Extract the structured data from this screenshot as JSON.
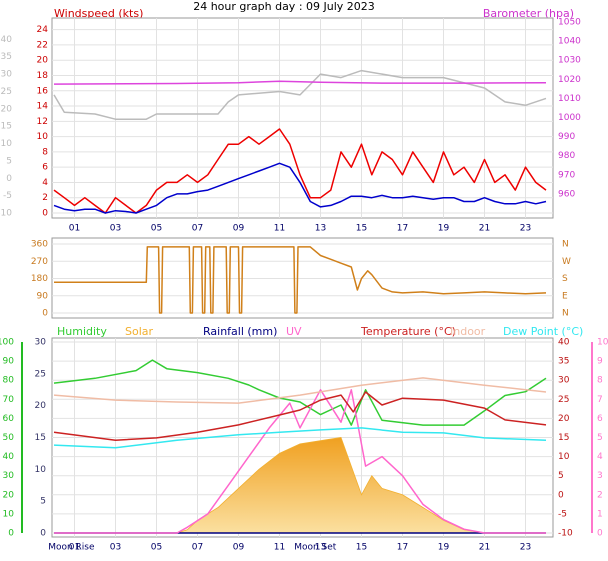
{
  "title": "24 hour graph day : 09 July 2023",
  "chart_data": [
    {
      "type": "line",
      "y_label": "Windspeed (kts)",
      "y2_label": "Barometer (hpa)",
      "axis_colors": {
        "y": "#cc0000",
        "y2": "#cc33cc",
        "y3": "#bbbbbb"
      },
      "grid": true,
      "xlim": [
        0,
        24
      ],
      "xticks": [
        {
          "value": 1,
          "label": "01"
        },
        {
          "value": 3,
          "label": "03"
        },
        {
          "value": 5,
          "label": "05"
        },
        {
          "value": 7,
          "label": "07"
        },
        {
          "value": 9,
          "label": "09"
        },
        {
          "value": 11,
          "label": "11"
        },
        13,
        15,
        17,
        19,
        21,
        23
      ],
      "ylim": [
        0,
        25
      ],
      "yticks": [
        0,
        2,
        4,
        6,
        8,
        10,
        12,
        14,
        16,
        18,
        20,
        22,
        24
      ],
      "y2lim": [
        950,
        1050
      ],
      "y2ticks": [
        960,
        970,
        980,
        990,
        1000,
        1010,
        1020,
        1030,
        1040,
        1050
      ],
      "y3lim": [
        -10,
        45
      ],
      "y3ticks": [
        -10,
        -5,
        0,
        5,
        10,
        15,
        20,
        25,
        30,
        35,
        40
      ],
      "x": [
        0,
        0.5,
        1,
        1.5,
        2,
        2.5,
        3,
        3.5,
        4,
        4.5,
        5,
        5.5,
        6,
        6.5,
        7,
        7.5,
        8,
        8.5,
        9,
        9.5,
        10,
        10.5,
        11,
        11.5,
        12,
        12.5,
        13,
        13.5,
        14,
        14.5,
        15,
        15.5,
        16,
        16.5,
        17,
        17.5,
        18,
        18.5,
        19,
        19.5,
        20,
        20.5,
        21,
        21.5,
        22,
        22.5,
        23,
        23.5,
        24
      ],
      "series": [
        {
          "color": "#bbbbbb",
          "axis": "y3",
          "x": [
            0,
            0.5,
            2,
            3,
            4.5,
            5,
            8,
            8.5,
            9,
            11,
            12,
            13,
            14,
            15,
            17,
            19,
            21,
            22,
            23,
            24
          ],
          "values": [
            24,
            19,
            18.5,
            17,
            17,
            18.5,
            18.5,
            22,
            24,
            25,
            24,
            30,
            29,
            31,
            29,
            29,
            26,
            22,
            21,
            23
          ]
        },
        {
          "color": "#dd44dd",
          "axis": "y2",
          "x": [
            0,
            6,
            9,
            11,
            13,
            16,
            20,
            24
          ],
          "values": [
            1017.5,
            1017.8,
            1018.2,
            1019,
            1018.5,
            1018,
            1018,
            1018.2
          ]
        },
        {
          "color": "#ee0000",
          "axis": "y",
          "values": [
            3,
            2,
            1,
            2,
            1,
            0,
            2,
            1,
            0,
            1,
            3,
            4,
            4,
            5,
            4,
            5,
            7,
            9,
            9,
            10,
            9,
            10,
            11,
            9,
            5,
            2,
            2,
            3,
            8,
            6,
            9,
            5,
            8,
            7,
            5,
            8,
            6,
            4,
            8,
            5,
            6,
            4,
            7,
            4,
            5,
            3,
            6,
            4,
            3
          ]
        },
        {
          "color": "#0000cc",
          "axis": "y",
          "values": [
            1,
            0.5,
            0.3,
            0.5,
            0.5,
            0,
            0.3,
            0.2,
            0,
            0.5,
            1,
            2,
            2.5,
            2.5,
            2.8,
            3,
            3.5,
            4,
            4.5,
            5,
            5.5,
            6,
            6.5,
            6,
            4,
            1.5,
            0.8,
            1,
            1.5,
            2.2,
            2.2,
            2,
            2.3,
            2,
            2,
            2.2,
            2,
            1.8,
            2,
            2,
            1.5,
            1.5,
            2,
            1.5,
            1.2,
            1.2,
            1.5,
            1.2,
            1.5
          ]
        }
      ]
    },
    {
      "type": "line",
      "axis_colors": {
        "y": "#c87a20",
        "y2": "#c87a20"
      },
      "grid": true,
      "xlim": [
        0,
        24
      ],
      "ylim": [
        0,
        360
      ],
      "yticks": [
        0,
        90,
        180,
        270,
        360
      ],
      "y2lim": [
        0,
        360
      ],
      "y2ticks": [
        {
          "value": 0,
          "label": "N"
        },
        {
          "value": 90,
          "label": "E"
        },
        {
          "value": 180,
          "label": "S"
        },
        {
          "value": 270,
          "label": "W"
        },
        {
          "value": 360,
          "label": "N"
        }
      ],
      "x": [
        0,
        4.5,
        4.55,
        5.1,
        5.15,
        5.25,
        5.3,
        6.6,
        6.65,
        6.75,
        6.8,
        7.2,
        7.25,
        7.35,
        7.4,
        7.6,
        7.65,
        7.75,
        7.8,
        8.4,
        8.45,
        8.55,
        8.6,
        9.0,
        9.05,
        9.15,
        9.2,
        11.7,
        11.75,
        11.85,
        11.9,
        12.5,
        13,
        13.5,
        14,
        14.5,
        14.8,
        15,
        15.3,
        15.5,
        16,
        16.5,
        17,
        18,
        19,
        20,
        21,
        22,
        23,
        24
      ],
      "series": [
        {
          "color": "#d0801a",
          "axis": "y",
          "values": [
            160,
            160,
            345,
            345,
            0,
            0,
            345,
            345,
            0,
            0,
            345,
            345,
            0,
            0,
            345,
            345,
            0,
            0,
            345,
            345,
            0,
            0,
            345,
            345,
            0,
            0,
            345,
            345,
            0,
            0,
            345,
            345,
            300,
            280,
            260,
            240,
            120,
            180,
            220,
            200,
            130,
            110,
            105,
            110,
            100,
            105,
            110,
            105,
            100,
            105
          ]
        }
      ]
    },
    {
      "type": "line",
      "axis_colors": {
        "y": "#22bb22",
        "y2": "#bb1111",
        "y3": "#333366",
        "y4": "#ff77cc"
      },
      "grid": true,
      "xlim": [
        0,
        24
      ],
      "xticks": [
        {
          "value": 1,
          "label": "01"
        },
        {
          "value": 3,
          "label": "03"
        },
        {
          "value": 5,
          "label": "05"
        },
        {
          "value": 7,
          "label": "07"
        },
        {
          "value": 9,
          "label": "09"
        },
        {
          "value": 11,
          "label": "11"
        },
        13,
        15,
        17,
        19,
        21,
        23
      ],
      "ylim": [
        0,
        100
      ],
      "yticks": [
        0,
        10,
        20,
        30,
        40,
        50,
        60,
        70,
        80,
        90,
        100
      ],
      "y2lim": [
        -10,
        40
      ],
      "y2ticks": [
        -10,
        -5,
        0,
        5,
        10,
        15,
        20,
        25,
        30,
        35,
        40
      ],
      "y3lim": [
        0,
        30
      ],
      "y3ticks": [
        0,
        5,
        10,
        15,
        20,
        25,
        30
      ],
      "y4lim": [
        0,
        10
      ],
      "y4ticks": [
        0,
        1,
        2,
        3,
        4,
        5,
        6,
        7,
        8,
        9,
        10
      ],
      "annotations": [
        {
          "text": "Moon Rise",
          "x": 0.4
        },
        {
          "text": "Moon Set",
          "x": 12.4
        }
      ],
      "series": [
        {
          "name": "Humidity",
          "color": "#33cc33",
          "axis": "y",
          "x": [
            0,
            2,
            4,
            4.8,
            5.5,
            7,
            8.5,
            9.5,
            10,
            11,
            12,
            13,
            14,
            14.5,
            15.2,
            16,
            18,
            20,
            21,
            22,
            23,
            24
          ],
          "values": [
            78.5,
            81,
            85,
            90.5,
            86,
            84,
            81,
            77.5,
            75,
            70.7,
            68.6,
            62,
            67,
            56.5,
            75,
            59,
            56.5,
            56.5,
            64,
            72,
            74,
            81
          ]
        },
        {
          "name": "Solar",
          "color": "#f2b030",
          "axis": "y3",
          "area": true,
          "x": [
            0,
            6,
            6.5,
            7,
            8,
            9,
            10,
            11,
            12,
            13,
            14,
            15,
            15.5,
            16,
            17,
            18,
            19,
            20,
            21,
            24
          ],
          "values": [
            0,
            0,
            0.5,
            2,
            4,
            7,
            10,
            12.5,
            14,
            14.5,
            15,
            6,
            9,
            7,
            6,
            4,
            2,
            0.5,
            0,
            0
          ]
        },
        {
          "name": "Rainfall (mm)",
          "color": "#000080",
          "axis": "y3",
          "x": [
            0,
            24
          ],
          "values": [
            0,
            0
          ]
        },
        {
          "name": "UV",
          "color": "#ff66cc",
          "axis": "y4",
          "x": [
            0,
            6,
            6.5,
            7.5,
            8.5,
            9.5,
            10.5,
            11.5,
            12,
            13,
            14,
            14.5,
            15.2,
            16,
            17,
            18,
            19,
            20,
            21,
            24
          ],
          "values": [
            0,
            0,
            0.3,
            1,
            2.5,
            4,
            5.5,
            6.8,
            5.5,
            7.5,
            5.8,
            7.5,
            3.5,
            4,
            3,
            1.5,
            0.7,
            0.2,
            0,
            0
          ]
        },
        {
          "name": "Temperature (°C)",
          "color": "#cc2222",
          "axis": "y2",
          "x": [
            0,
            3,
            5,
            7,
            9,
            11,
            12,
            13,
            14,
            14.6,
            15.2,
            16,
            17,
            19,
            21,
            22,
            24
          ],
          "values": [
            16.4,
            14.3,
            14.9,
            16.4,
            18.3,
            20.9,
            22.2,
            24.8,
            26.1,
            21.7,
            26.9,
            23.5,
            25.3,
            24.8,
            22.7,
            19.6,
            18.3
          ]
        },
        {
          "name": "Indoor",
          "color": "#f0bca5",
          "axis": "y2",
          "x": [
            0,
            3,
            6,
            9,
            12,
            15,
            18,
            21,
            24
          ],
          "values": [
            26.1,
            24.8,
            24.3,
            24,
            26.1,
            28.7,
            30.6,
            28.7,
            26.9
          ]
        },
        {
          "name": "Dew Point (°C)",
          "color": "#33e8f0",
          "axis": "y2",
          "x": [
            0,
            3,
            6,
            9,
            11,
            13,
            15,
            17,
            19,
            21,
            24
          ],
          "values": [
            13,
            12.3,
            14.3,
            15.7,
            16.4,
            17,
            17.5,
            16.4,
            16.2,
            14.9,
            14.3
          ]
        }
      ]
    }
  ]
}
